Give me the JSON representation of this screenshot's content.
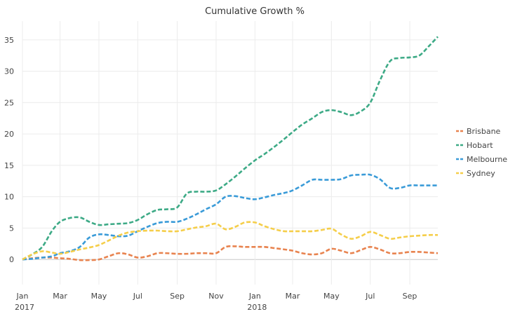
{
  "chart_data": {
    "type": "line",
    "title": "Cumulative Growth %",
    "xlabel": "",
    "ylabel": "",
    "ylim": [
      -4,
      38
    ],
    "yticks": [
      0,
      5,
      10,
      15,
      20,
      25,
      30,
      35
    ],
    "xrange": [
      "2017-01-01",
      "2018-10-15"
    ],
    "xticks": [
      {
        "date": "2017-01-01",
        "label": "Jan",
        "year": "2017"
      },
      {
        "date": "2017-03-01",
        "label": "Mar",
        "year": ""
      },
      {
        "date": "2017-05-01",
        "label": "May",
        "year": ""
      },
      {
        "date": "2017-07-01",
        "label": "Jul",
        "year": ""
      },
      {
        "date": "2017-09-01",
        "label": "Sep",
        "year": ""
      },
      {
        "date": "2017-11-01",
        "label": "Nov",
        "year": ""
      },
      {
        "date": "2018-01-01",
        "label": "Jan",
        "year": "2018"
      },
      {
        "date": "2018-03-01",
        "label": "Mar",
        "year": ""
      },
      {
        "date": "2018-05-01",
        "label": "May",
        "year": ""
      },
      {
        "date": "2018-07-01",
        "label": "Jul",
        "year": ""
      },
      {
        "date": "2018-09-01",
        "label": "Sep",
        "year": ""
      }
    ],
    "grid": true,
    "legend_position": "right",
    "line_style": "dashed",
    "x": [
      "2017-01-01",
      "2017-01-16",
      "2017-02-01",
      "2017-02-16",
      "2017-03-01",
      "2017-03-16",
      "2017-04-01",
      "2017-04-16",
      "2017-05-01",
      "2017-05-16",
      "2017-06-01",
      "2017-06-16",
      "2017-07-01",
      "2017-07-16",
      "2017-08-01",
      "2017-08-16",
      "2017-09-01",
      "2017-09-16",
      "2017-10-01",
      "2017-10-16",
      "2017-11-01",
      "2017-11-16",
      "2017-12-01",
      "2017-12-16",
      "2018-01-01",
      "2018-01-16",
      "2018-02-01",
      "2018-02-16",
      "2018-03-01",
      "2018-03-16",
      "2018-04-01",
      "2018-04-16",
      "2018-05-01",
      "2018-05-16",
      "2018-06-01",
      "2018-06-16",
      "2018-07-01",
      "2018-07-16",
      "2018-08-01",
      "2018-08-16",
      "2018-09-01",
      "2018-09-16",
      "2018-10-01",
      "2018-10-15"
    ],
    "series": [
      {
        "name": "Brisbane",
        "color": "#e8834f",
        "values": [
          0,
          0.2,
          0.3,
          0.3,
          0.2,
          0.1,
          -0.1,
          -0.1,
          0,
          0.5,
          1.0,
          0.8,
          0.3,
          0.5,
          1.0,
          1.0,
          0.9,
          0.9,
          1.0,
          1.0,
          1.0,
          2.0,
          2.1,
          2.0,
          2.0,
          2.0,
          1.8,
          1.6,
          1.4,
          1.0,
          0.8,
          1.0,
          1.7,
          1.4,
          1.0,
          1.5,
          2.0,
          1.6,
          1.0,
          1.0,
          1.2,
          1.2,
          1.1,
          1.0
        ]
      },
      {
        "name": "Hobart",
        "color": "#3daa86",
        "values": [
          0,
          0.8,
          2.0,
          4.5,
          6.0,
          6.6,
          6.7,
          6.0,
          5.5,
          5.6,
          5.7,
          5.8,
          6.3,
          7.2,
          7.9,
          8.0,
          8.3,
          10.5,
          10.8,
          10.8,
          11.0,
          12.0,
          13.2,
          14.5,
          15.8,
          16.8,
          18.0,
          19.2,
          20.3,
          21.5,
          22.5,
          23.5,
          23.8,
          23.5,
          23.0,
          23.6,
          25.0,
          28.5,
          31.6,
          32.1,
          32.2,
          32.5,
          34.0,
          35.5
        ]
      },
      {
        "name": "Melbourne",
        "color": "#3a9bd8",
        "values": [
          0,
          0.1,
          0.3,
          0.5,
          1.0,
          1.3,
          2.0,
          3.5,
          4.0,
          3.9,
          3.7,
          3.8,
          4.5,
          5.2,
          5.8,
          6.0,
          6.0,
          6.5,
          7.2,
          8.0,
          8.8,
          10.0,
          10.1,
          9.8,
          9.6,
          9.9,
          10.3,
          10.6,
          11.0,
          11.8,
          12.7,
          12.7,
          12.7,
          12.8,
          13.4,
          13.5,
          13.5,
          12.8,
          11.4,
          11.4,
          11.8,
          11.8,
          11.8,
          11.8
        ]
      },
      {
        "name": "Sydney",
        "color": "#f5ce4a",
        "values": [
          0,
          0.8,
          1.3,
          1.1,
          0.9,
          1.2,
          1.6,
          1.9,
          2.3,
          3.0,
          3.8,
          4.3,
          4.5,
          4.6,
          4.6,
          4.5,
          4.5,
          4.8,
          5.1,
          5.3,
          5.7,
          4.8,
          5.2,
          5.9,
          5.9,
          5.3,
          4.8,
          4.5,
          4.5,
          4.5,
          4.5,
          4.7,
          4.9,
          4.0,
          3.3,
          3.7,
          4.4,
          3.9,
          3.3,
          3.5,
          3.7,
          3.8,
          3.9,
          3.9
        ]
      }
    ]
  }
}
